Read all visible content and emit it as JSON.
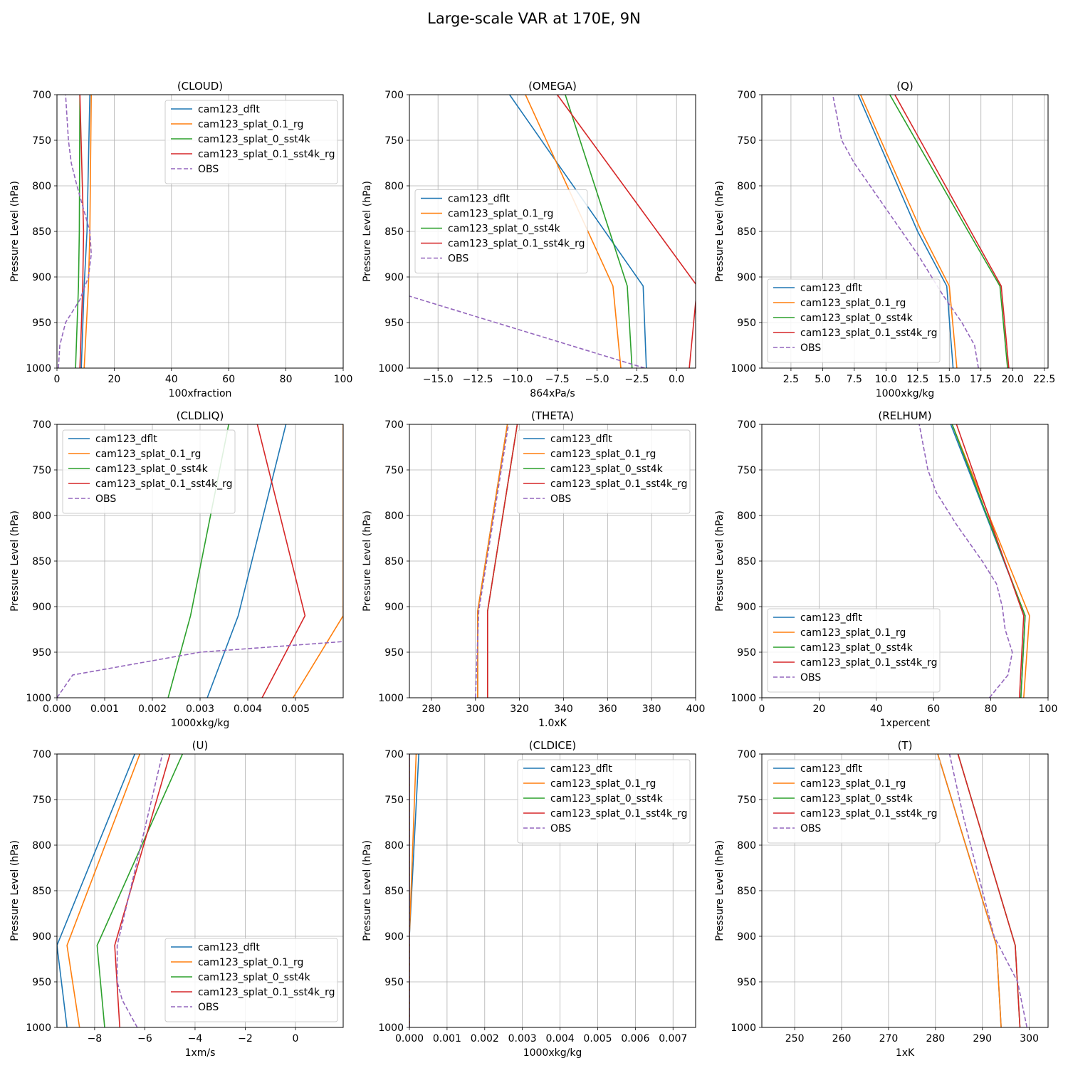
{
  "figure": {
    "title": "Large-scale VAR at 170E, 9N",
    "series_colors": {
      "cam123_dflt": "#1f77b4",
      "cam123_splat_0.1_rg": "#ff7f0e",
      "cam123_splat_0_sst4k": "#2ca02c",
      "cam123_splat_0.1_sst4k_rg": "#d62728",
      "OBS": "#9467bd"
    }
  },
  "chart_data": [
    {
      "type": "line",
      "title": "(CLOUD)",
      "xlabel": "100xfraction",
      "ylabel": "Pressure Level (hPa)",
      "xlim": [
        0,
        100
      ],
      "ylim": [
        1000,
        700
      ],
      "xticks": [
        0,
        20,
        40,
        60,
        80,
        100
      ],
      "xtick_labels": [
        "0",
        "20",
        "40",
        "60",
        "80",
        "100"
      ],
      "yticks": [
        700,
        750,
        800,
        850,
        900,
        950,
        1000
      ],
      "grid": true,
      "legend": "upper right",
      "series": [
        {
          "name": "cam123_dflt",
          "x": [
            8.5,
            9.5,
            10.5,
            11.5
          ],
          "y": [
            1000,
            910,
            850,
            700
          ]
        },
        {
          "name": "cam123_splat_0.1_rg",
          "x": [
            9.5,
            11.0,
            11.5,
            12.0
          ],
          "y": [
            1000,
            910,
            850,
            700
          ]
        },
        {
          "name": "cam123_splat_0_sst4k",
          "x": [
            6.5,
            7.5,
            7.8,
            8.0
          ],
          "y": [
            1000,
            910,
            850,
            700
          ]
        },
        {
          "name": "cam123_splat_0.1_sst4k_rg",
          "x": [
            8.0,
            9.0,
            9.3,
            8.0
          ],
          "y": [
            1000,
            910,
            850,
            700
          ]
        },
        {
          "name": "OBS",
          "x": [
            0.5,
            1.0,
            3.0,
            8.0,
            11.0,
            12.0,
            11.5,
            7.0,
            5.0,
            4.0,
            3.5,
            3.0
          ],
          "y": [
            1000,
            975,
            950,
            925,
            900,
            875,
            850,
            800,
            775,
            750,
            725,
            700
          ]
        }
      ]
    },
    {
      "type": "line",
      "title": "(OMEGA)",
      "xlabel": "864xPa/s",
      "ylabel": "Pressure Level (hPa)",
      "xlim": [
        -16.8,
        1.2
      ],
      "ylim": [
        1000,
        700
      ],
      "xticks": [
        -15,
        -12.5,
        -10,
        -7.5,
        -5,
        -2.5,
        0
      ],
      "xtick_labels": [
        "−15.0",
        "−12.5",
        "−10.0",
        "−7.5",
        "−5.0",
        "−2.5",
        "0.0"
      ],
      "yticks": [
        700,
        750,
        800,
        850,
        900,
        950,
        1000
      ],
      "grid": true,
      "legend": "center left",
      "series": [
        {
          "name": "cam123_dflt",
          "x": [
            -1.9,
            -2.1,
            -10.5
          ],
          "y": [
            1000,
            910,
            700
          ]
        },
        {
          "name": "cam123_splat_0.1_rg",
          "x": [
            -3.5,
            -4.0,
            -9.5
          ],
          "y": [
            1000,
            910,
            700
          ]
        },
        {
          "name": "cam123_splat_0_sst4k",
          "x": [
            -2.8,
            -3.1,
            -7.0
          ],
          "y": [
            1000,
            910,
            700
          ]
        },
        {
          "name": "cam123_splat_0.1_sst4k_rg",
          "x": [
            0.8,
            1.3,
            -7.5
          ],
          "y": [
            1000,
            910,
            700
          ]
        },
        {
          "name": "OBS",
          "x": [
            -2.0,
            -17.0
          ],
          "y": [
            1000,
            920
          ]
        }
      ]
    },
    {
      "type": "line",
      "title": "(Q)",
      "xlabel": "1000xkg/kg",
      "ylabel": "Pressure Level (hPa)",
      "xlim": [
        0.2,
        22.8
      ],
      "ylim": [
        1000,
        700
      ],
      "xticks": [
        2.5,
        5,
        7.5,
        10,
        12.5,
        15,
        17.5,
        20,
        22.5
      ],
      "xtick_labels": [
        "2.5",
        "5.0",
        "7.5",
        "10.0",
        "12.5",
        "15.0",
        "17.5",
        "20.0",
        "22.5"
      ],
      "yticks": [
        700,
        750,
        800,
        850,
        900,
        950,
        1000
      ],
      "grid": true,
      "legend": "lower left",
      "series": [
        {
          "name": "cam123_dflt",
          "x": [
            15.3,
            14.8,
            12.5,
            7.8
          ],
          "y": [
            1000,
            910,
            850,
            700
          ]
        },
        {
          "name": "cam123_splat_0.1_rg",
          "x": [
            15.6,
            15.0,
            12.8,
            8.0
          ],
          "y": [
            1000,
            910,
            850,
            700
          ]
        },
        {
          "name": "cam123_splat_0_sst4k",
          "x": [
            19.6,
            19.0,
            16.5,
            10.3
          ],
          "y": [
            1000,
            910,
            850,
            700
          ]
        },
        {
          "name": "cam123_splat_0.1_sst4k_rg",
          "x": [
            19.7,
            19.1,
            16.7,
            10.7
          ],
          "y": [
            1000,
            910,
            850,
            700
          ]
        },
        {
          "name": "OBS",
          "x": [
            17.3,
            17.0,
            16.0,
            14.5,
            12.5,
            10.0,
            7.5,
            6.5,
            5.8
          ],
          "y": [
            1000,
            975,
            950,
            920,
            875,
            825,
            775,
            750,
            700
          ]
        }
      ]
    },
    {
      "type": "line",
      "title": "(CLDLIQ)",
      "xlabel": "1000xkg/kg",
      "ylabel": "Pressure Level (hPa)",
      "xlim": [
        0,
        0.006
      ],
      "ylim": [
        1000,
        700
      ],
      "xticks": [
        0,
        0.001,
        0.002,
        0.003,
        0.004,
        0.005
      ],
      "xtick_labels": [
        "0.000",
        "0.001",
        "0.002",
        "0.003",
        "0.004",
        "0.005"
      ],
      "yticks": [
        700,
        750,
        800,
        850,
        900,
        950,
        1000
      ],
      "grid": true,
      "legend": "upper left",
      "series": [
        {
          "name": "cam123_dflt",
          "x": [
            0.00315,
            0.0038,
            0.0048
          ],
          "y": [
            1000,
            910,
            700
          ]
        },
        {
          "name": "cam123_splat_0.1_rg",
          "x": [
            0.00495,
            0.006,
            0.006,
            0.006
          ],
          "y": [
            1000,
            910,
            850,
            700
          ]
        },
        {
          "name": "cam123_splat_0_sst4k",
          "x": [
            0.00233,
            0.0028,
            0.0036
          ],
          "y": [
            1000,
            910,
            700
          ]
        },
        {
          "name": "cam123_splat_0.1_sst4k_rg",
          "x": [
            0.0043,
            0.0052,
            0.0042
          ],
          "y": [
            1000,
            910,
            700
          ]
        },
        {
          "name": "OBS",
          "x": [
            0.0,
            0.00033,
            0.003,
            0.0061
          ],
          "y": [
            1000,
            975,
            950,
            938
          ]
        }
      ]
    },
    {
      "type": "line",
      "title": "(THETA)",
      "xlabel": "1.0xK",
      "ylabel": "Pressure Level (hPa)",
      "xlim": [
        270,
        400
      ],
      "ylim": [
        1000,
        700
      ],
      "xticks": [
        280,
        300,
        320,
        340,
        360,
        380,
        400
      ],
      "xtick_labels": [
        "280",
        "300",
        "320",
        "340",
        "360",
        "380",
        "400"
      ],
      "yticks": [
        700,
        750,
        800,
        850,
        900,
        950,
        1000
      ],
      "grid": true,
      "legend": "upper right",
      "series": [
        {
          "name": "cam123_dflt",
          "x": [
            301.0,
            301.0,
            314.5
          ],
          "y": [
            1000,
            905,
            700
          ]
        },
        {
          "name": "cam123_splat_0.1_rg",
          "x": [
            301.0,
            301.0,
            314.5
          ],
          "y": [
            1000,
            905,
            700
          ]
        },
        {
          "name": "cam123_splat_0_sst4k",
          "x": [
            305.5,
            305.5,
            319.0
          ],
          "y": [
            1000,
            905,
            700
          ]
        },
        {
          "name": "cam123_splat_0.1_sst4k_rg",
          "x": [
            305.5,
            305.5,
            319.0
          ],
          "y": [
            1000,
            905,
            700
          ]
        },
        {
          "name": "OBS",
          "x": [
            300.0,
            301.5,
            315.0
          ],
          "y": [
            1000,
            905,
            700
          ]
        }
      ]
    },
    {
      "type": "line",
      "title": "(RELHUM)",
      "xlabel": "1xpercent",
      "ylabel": "Pressure Level (hPa)",
      "xlim": [
        0,
        100
      ],
      "ylim": [
        1000,
        700
      ],
      "xticks": [
        0,
        20,
        40,
        60,
        80,
        100
      ],
      "xtick_labels": [
        "0",
        "20",
        "40",
        "60",
        "80",
        "100"
      ],
      "yticks": [
        700,
        750,
        800,
        850,
        900,
        950,
        1000
      ],
      "grid": true,
      "legend": "lower left",
      "series": [
        {
          "name": "cam123_dflt",
          "x": [
            90.5,
            92.0,
            66.0
          ],
          "y": [
            1000,
            910,
            700
          ]
        },
        {
          "name": "cam123_splat_0.1_rg",
          "x": [
            91.5,
            93.5,
            66.5
          ],
          "y": [
            1000,
            910,
            700
          ]
        },
        {
          "name": "cam123_splat_0_sst4k",
          "x": [
            90.5,
            92.0,
            66.5
          ],
          "y": [
            1000,
            910,
            700
          ]
        },
        {
          "name": "cam123_splat_0.1_sst4k_rg",
          "x": [
            90.0,
            91.5,
            68.0
          ],
          "y": [
            1000,
            910,
            700
          ]
        },
        {
          "name": "OBS",
          "x": [
            79.5,
            86.0,
            87.5,
            85.0,
            84.0,
            82.0,
            77.0,
            68.0,
            61.0,
            58.0,
            55.0
          ],
          "y": [
            1000,
            975,
            950,
            925,
            900,
            875,
            850,
            810,
            775,
            750,
            700
          ]
        }
      ]
    },
    {
      "type": "line",
      "title": "(U)",
      "xlabel": "1xm/s",
      "ylabel": "Pressure Level (hPa)",
      "xlim": [
        -9.5,
        1.9
      ],
      "ylim": [
        1000,
        700
      ],
      "xticks": [
        -8,
        -6,
        -4,
        -2,
        0
      ],
      "xtick_labels": [
        "−8",
        "−6",
        "−4",
        "−2",
        "0"
      ],
      "yticks": [
        700,
        750,
        800,
        850,
        900,
        950,
        1000
      ],
      "grid": true,
      "legend": "lower right",
      "series": [
        {
          "name": "cam123_dflt",
          "x": [
            -9.1,
            -9.5,
            -6.4
          ],
          "y": [
            1000,
            910,
            700
          ]
        },
        {
          "name": "cam123_splat_0.1_rg",
          "x": [
            -8.6,
            -9.1,
            -6.2
          ],
          "y": [
            1000,
            910,
            700
          ]
        },
        {
          "name": "cam123_splat_0_sst4k",
          "x": [
            -7.6,
            -7.9,
            -4.5
          ],
          "y": [
            1000,
            910,
            700
          ]
        },
        {
          "name": "cam123_splat_0.1_sst4k_rg",
          "x": [
            -7.0,
            -7.2,
            -5.0
          ],
          "y": [
            1000,
            910,
            700
          ]
        },
        {
          "name": "OBS",
          "x": [
            -6.3,
            -6.9,
            -7.1,
            -7.1,
            -5.3
          ],
          "y": [
            1000,
            970,
            950,
            910,
            700
          ]
        }
      ]
    },
    {
      "type": "line",
      "title": "(CLDICE)",
      "xlabel": "1000xkg/kg",
      "ylabel": "Pressure Level (hPa)",
      "xlim": [
        0,
        0.0076
      ],
      "ylim": [
        1000,
        700
      ],
      "xticks": [
        0,
        0.001,
        0.002,
        0.003,
        0.004,
        0.005,
        0.006,
        0.007
      ],
      "xtick_labels": [
        "0.000",
        "0.001",
        "0.002",
        "0.003",
        "0.004",
        "0.005",
        "0.006",
        "0.007"
      ],
      "yticks": [
        700,
        750,
        800,
        850,
        900,
        950,
        1000
      ],
      "grid": true,
      "legend": "upper right",
      "series": [
        {
          "name": "cam123_dflt",
          "x": [
            0.0,
            0.0,
            0.00025
          ],
          "y": [
            1000,
            900,
            700
          ]
        },
        {
          "name": "cam123_splat_0.1_rg",
          "x": [
            0.0,
            0.0,
            0.00018
          ],
          "y": [
            1000,
            900,
            700
          ]
        },
        {
          "name": "cam123_splat_0_sst4k",
          "x": [
            0.0,
            0.0,
            0.0
          ],
          "y": [
            1000,
            900,
            700
          ]
        },
        {
          "name": "cam123_splat_0.1_sst4k_rg",
          "x": [
            0.0,
            0.0,
            0.0
          ],
          "y": [
            1000,
            900,
            700
          ]
        },
        {
          "name": "OBS",
          "x": [
            0.0,
            0.0
          ],
          "y": [
            1000,
            700
          ]
        }
      ]
    },
    {
      "type": "line",
      "title": "(T)",
      "xlabel": "1xK",
      "ylabel": "Pressure Level (hPa)",
      "xlim": [
        243,
        304
      ],
      "ylim": [
        1000,
        700
      ],
      "xticks": [
        250,
        260,
        270,
        280,
        290,
        300
      ],
      "xtick_labels": [
        "250",
        "260",
        "270",
        "280",
        "290",
        "300"
      ],
      "yticks": [
        700,
        750,
        800,
        850,
        900,
        950,
        1000
      ],
      "grid": true,
      "legend": "upper left",
      "series": [
        {
          "name": "cam123_dflt",
          "x": [
            294.0,
            293.0,
            280.5
          ],
          "y": [
            1000,
            910,
            700
          ]
        },
        {
          "name": "cam123_splat_0.1_rg",
          "x": [
            294.0,
            293.0,
            280.5
          ],
          "y": [
            1000,
            910,
            700
          ]
        },
        {
          "name": "cam123_splat_0_sst4k",
          "x": [
            298.0,
            297.0,
            284.8
          ],
          "y": [
            1000,
            910,
            700
          ]
        },
        {
          "name": "cam123_splat_0.1_sst4k_rg",
          "x": [
            298.0,
            297.0,
            284.8
          ],
          "y": [
            1000,
            910,
            700
          ]
        },
        {
          "name": "OBS",
          "x": [
            299.5,
            297.5,
            292.5,
            286.0,
            283.0
          ],
          "y": [
            1000,
            950,
            900,
            770,
            700
          ]
        }
      ]
    }
  ]
}
